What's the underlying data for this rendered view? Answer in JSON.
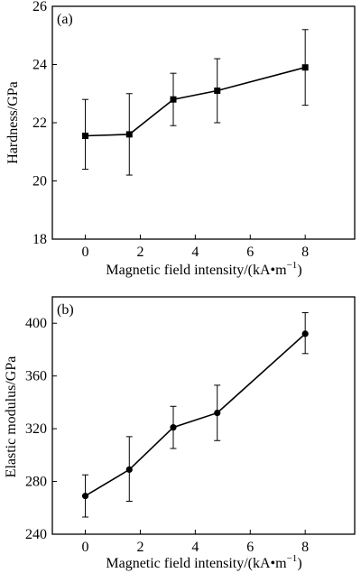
{
  "chart_data": [
    {
      "type": "line",
      "panel_label": "(a)",
      "xlabel": "Magnetic field intensity/(kA•m",
      "xlabel_sup": "−1",
      "xlabel_suffix": ")",
      "ylabel": "Hardness/GPa",
      "xlim": [
        -1.2,
        9.8
      ],
      "ylim": [
        18,
        26
      ],
      "xticks": [
        0,
        2,
        4,
        6,
        8
      ],
      "yticks": [
        18,
        20,
        22,
        24,
        26
      ],
      "xtick_labels": [
        "0",
        "2",
        "4",
        "6",
        "8"
      ],
      "ytick_labels": [
        "18",
        "20",
        "22",
        "24",
        "26"
      ],
      "marker": "square",
      "series": [
        {
          "x": [
            0,
            1.6,
            3.2,
            4.8,
            8
          ],
          "y": [
            21.55,
            21.6,
            22.8,
            23.1,
            23.9
          ],
          "err_low": [
            20.4,
            20.2,
            21.9,
            22.0,
            22.6
          ],
          "err_high": [
            22.8,
            23.0,
            23.7,
            24.2,
            25.2
          ]
        }
      ]
    },
    {
      "type": "line",
      "panel_label": "(b)",
      "xlabel": "Magnetic field intensity/(kA•m",
      "xlabel_sup": "−1",
      "xlabel_suffix": ")",
      "ylabel": "Elastic modulus/GPa",
      "xlim": [
        -1.2,
        9.8
      ],
      "ylim": [
        240,
        420
      ],
      "xticks": [
        0,
        2,
        4,
        6,
        8
      ],
      "yticks": [
        240,
        280,
        320,
        360,
        400
      ],
      "xtick_labels": [
        "0",
        "2",
        "4",
        "6",
        "8"
      ],
      "ytick_labels": [
        "240",
        "280",
        "320",
        "360",
        "400"
      ],
      "marker": "circle",
      "series": [
        {
          "x": [
            0,
            1.6,
            3.2,
            4.8,
            8
          ],
          "y": [
            269,
            289,
            321,
            332,
            392
          ],
          "err_low": [
            253,
            265,
            305,
            311,
            377
          ],
          "err_high": [
            285,
            314,
            337,
            353,
            408
          ]
        }
      ]
    }
  ]
}
